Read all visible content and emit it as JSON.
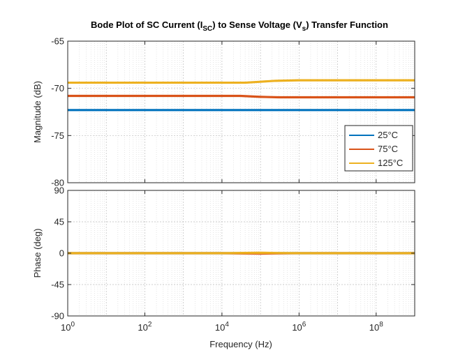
{
  "figure": {
    "title_parts": {
      "p1": "Bode Plot of SC Current (I",
      "sub1": "SC",
      "p2": ") to Sense Voltage (V",
      "sub2": "s",
      "p3": ") Transfer Function"
    },
    "xlabel": "Frequency  (Hz)"
  },
  "chart_data": [
    {
      "type": "line",
      "title": "Bode Plot of SC Current (ISC) to Sense Voltage (Vs) Transfer Function",
      "xlabel": "",
      "ylabel": "Magnitude (dB)",
      "xscale": "log",
      "xlim": [
        1,
        1000000000
      ],
      "ylim": [
        -80,
        -65
      ],
      "yticks": [
        -80,
        -75,
        -70,
        -65
      ],
      "ytick_labels": [
        "-80",
        "-75",
        "-70",
        "-65"
      ],
      "grid": "major and minor, dotted",
      "legend_position": "lower-right",
      "series": [
        {
          "name": "25°C",
          "color": "#0072BD",
          "points": [
            [
              1,
              -72.3
            ],
            [
              10000,
              -72.3
            ],
            [
              100000,
              -72.3
            ],
            [
              1000000,
              -72.3
            ],
            [
              1000000000,
              -72.3
            ]
          ]
        },
        {
          "name": "75°C",
          "color": "#D95319",
          "points": [
            [
              1,
              -70.8
            ],
            [
              10000,
              -70.8
            ],
            [
              30000,
              -70.8
            ],
            [
              100000,
              -70.9
            ],
            [
              300000,
              -70.95
            ],
            [
              1000000,
              -70.95
            ],
            [
              1000000000,
              -70.95
            ]
          ]
        },
        {
          "name": "125°C",
          "color": "#EDB120",
          "points": [
            [
              1,
              -69.4
            ],
            [
              10000,
              -69.4
            ],
            [
              40000,
              -69.4
            ],
            [
              100000,
              -69.3
            ],
            [
              250000,
              -69.2
            ],
            [
              1000000,
              -69.15
            ],
            [
              1000000000,
              -69.15
            ]
          ]
        }
      ]
    },
    {
      "type": "line",
      "xlabel": "Frequency  (Hz)",
      "ylabel": "Phase (deg)",
      "xscale": "log",
      "xlim": [
        1,
        1000000000
      ],
      "ylim": [
        -90,
        90
      ],
      "yticks": [
        -90,
        -45,
        0,
        45,
        90
      ],
      "ytick_labels": [
        "-90",
        "-45",
        "0",
        "45",
        "90"
      ],
      "xticks": [
        1,
        100,
        10000,
        1000000,
        100000000
      ],
      "xtick_labels": [
        {
          "base": "10",
          "exp": "0"
        },
        {
          "base": "10",
          "exp": "2"
        },
        {
          "base": "10",
          "exp": "4"
        },
        {
          "base": "10",
          "exp": "6"
        },
        {
          "base": "10",
          "exp": "8"
        }
      ],
      "grid": "major and minor, dotted",
      "series": [
        {
          "name": "25°C",
          "color": "#0072BD",
          "points": [
            [
              1,
              0
            ],
            [
              1000000000,
              0
            ]
          ]
        },
        {
          "name": "75°C",
          "color": "#D95319",
          "points": [
            [
              1,
              0
            ],
            [
              10000,
              0
            ],
            [
              40000,
              -0.4
            ],
            [
              100000,
              -0.6
            ],
            [
              250000,
              -0.3
            ],
            [
              1000000,
              0
            ],
            [
              1000000000,
              0
            ]
          ]
        },
        {
          "name": "125°C",
          "color": "#EDB120",
          "points": [
            [
              1,
              0
            ],
            [
              10000,
              0
            ],
            [
              40000,
              0.4
            ],
            [
              100000,
              0.6
            ],
            [
              250000,
              0.3
            ],
            [
              1000000,
              0
            ],
            [
              1000000000,
              0
            ]
          ]
        }
      ]
    }
  ]
}
